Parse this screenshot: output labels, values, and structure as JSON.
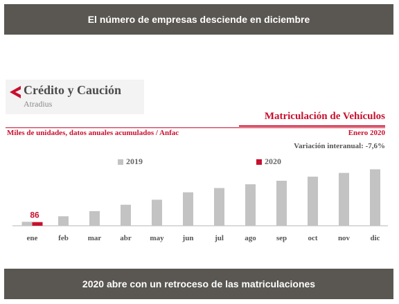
{
  "header": {
    "title": "El número de empresas desciende en diciembre"
  },
  "footer": {
    "caption": "2020 abre con un retroceso de las matriculaciones"
  },
  "logo": {
    "name": "Crédito y Caución",
    "sub": "Atradius"
  },
  "chart_text": {
    "title": "Matriculación de Vehículos",
    "subtitle": "Miles de unidades, datos anuales acumulados / Anfac",
    "date": "Enero  2020",
    "variation": "Variación interanual: -7,6%"
  },
  "colors": {
    "red": "#c8102e",
    "gray": "#c3c3c3",
    "banner": "#5a5752"
  },
  "chart_data": {
    "type": "bar",
    "title": "Matriculación de Vehículos",
    "subtitle": "Miles de unidades, datos anuales acumulados / Anfac",
    "categories": [
      "ene",
      "feb",
      "mar",
      "abr",
      "may",
      "jun",
      "jul",
      "ago",
      "sep",
      "oct",
      "nov",
      "dic"
    ],
    "series": [
      {
        "name": "2019",
        "color": "#c3c3c3",
        "values": [
          93,
          223,
          344,
          494,
          612,
          786,
          887,
          975,
          1058,
          1154,
          1242,
          1327
        ]
      },
      {
        "name": "2020",
        "color": "#c8102e",
        "values": [
          86,
          null,
          null,
          null,
          null,
          null,
          null,
          null,
          null,
          null,
          null,
          null
        ]
      }
    ],
    "data_labels": [
      {
        "series": "2020",
        "category": "ene",
        "text": "86"
      }
    ],
    "ylim": [
      0,
      1400
    ],
    "legend": "top",
    "grid": false
  }
}
